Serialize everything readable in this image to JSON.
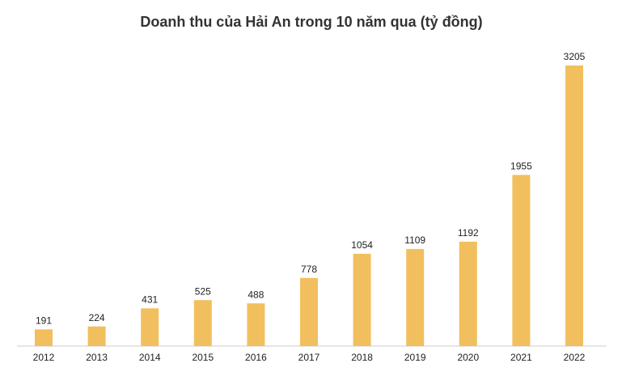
{
  "chart_data": {
    "type": "bar",
    "title": "Doanh thu của Hải An trong 10 năm qua (tỷ đồng)",
    "categories": [
      "2012",
      "2013",
      "2014",
      "2015",
      "2016",
      "2017",
      "2018",
      "2019",
      "2020",
      "2021",
      "2022"
    ],
    "values": [
      191,
      224,
      431,
      525,
      488,
      778,
      1054,
      1109,
      1192,
      1955,
      3205
    ],
    "color": "#f2bf5e"
  }
}
